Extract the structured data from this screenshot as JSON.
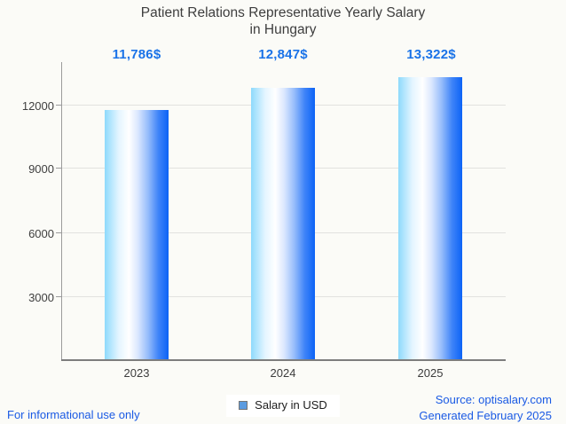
{
  "title": {
    "line1": "Patient Relations Representative Yearly Salary",
    "line2": "in Hungary"
  },
  "chart_data": {
    "type": "bar",
    "title": "Patient Relations Representative Yearly Salary in Hungary",
    "categories": [
      "2023",
      "2024",
      "2025"
    ],
    "series": [
      {
        "name": "Salary in USD",
        "values": [
          11786,
          12847,
          13322
        ]
      }
    ],
    "value_labels": [
      "11,786$",
      "12,847$",
      "13,322$"
    ],
    "ytick_labels": [
      "12000",
      "9000",
      "6000",
      "3000"
    ],
    "yticks": [
      12000,
      9000,
      6000,
      3000
    ],
    "ylim": [
      0,
      14000
    ],
    "xlabel": "",
    "ylabel": "",
    "grid": true,
    "legend_position": "bottom",
    "bar_gradient": [
      "#8edafc",
      "#ffffff",
      "#0c63f6"
    ],
    "value_label_color": "#1a73e8"
  },
  "legend": {
    "label": "Salary in USD",
    "marker_color": "#5b9be0"
  },
  "footer": {
    "left": "For informational use only",
    "source_line": "Source: optisalary.com",
    "generated_line": "Generated February 2025",
    "link_color": "#1a5ae4"
  }
}
